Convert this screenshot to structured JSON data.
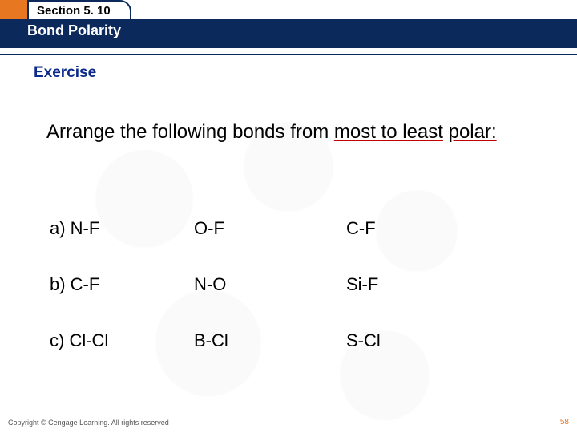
{
  "colors": {
    "orange": "#e87722",
    "navy": "#0b2a5b",
    "exercise": "#0b2a8a"
  },
  "header": {
    "section_label": "Section 5. 10",
    "title": "Bond Polarity",
    "exercise_label": "Exercise"
  },
  "prompt": {
    "lead": "Arrange the following bonds from ",
    "underlined1": "most to least",
    "mid": " ",
    "underlined2": "polar:"
  },
  "options": [
    {
      "label": "a)  N-F",
      "col2": "O-F",
      "col3": "C-F"
    },
    {
      "label": "b)  C-F",
      "col2": "N-O",
      "col3": "Si-F"
    },
    {
      "label": "c)  Cl-Cl",
      "col2": "B-Cl",
      "col3": "S-Cl"
    }
  ],
  "footer": {
    "copyright": "Copyright © Cengage Learning. All rights reserved",
    "page": "58"
  }
}
